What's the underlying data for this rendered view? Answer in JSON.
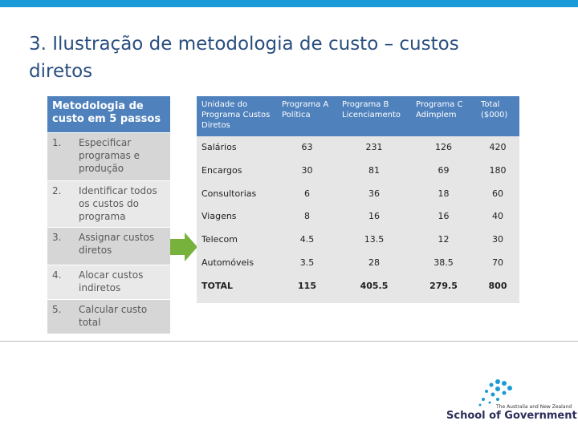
{
  "header": {
    "title": "3. Ilustração de metodologia de custo – custos diretos"
  },
  "steps_table": {
    "header": "Metodologia de custo em 5 passos",
    "rows": [
      [
        "1.",
        "Especificar programas e produção"
      ],
      [
        "2.",
        "Identificar todos os custos do programa"
      ],
      [
        "3.",
        "Assignar custos diretos"
      ],
      [
        "4.",
        "Alocar custos indiretos"
      ],
      [
        "5.",
        "Calcular custo total"
      ]
    ]
  },
  "cost_table": {
    "columns": [
      "Unidade do Programa Custos Diretos",
      "Programa A Política",
      "Programa B Licenciamento",
      "Programa C Adimplem",
      "Total ($000)"
    ],
    "rows": [
      [
        "Salários",
        "63",
        "231",
        "126",
        "420"
      ],
      [
        "Encargos",
        "30",
        "81",
        "69",
        "180"
      ],
      [
        "Consultorias",
        "6",
        "36",
        "18",
        "60"
      ],
      [
        "Viagens",
        "8",
        "16",
        "16",
        "40"
      ],
      [
        "Telecom",
        "4.5",
        "13.5",
        "12",
        "30"
      ],
      [
        "Automóveis",
        "3.5",
        "28",
        "38.5",
        "70"
      ],
      [
        "TOTAL",
        "115",
        "405.5",
        "279.5",
        "800"
      ]
    ]
  },
  "footer": {
    "logo_tagline": "The Australia and New Zealand",
    "logo_name": "School of Government"
  }
}
